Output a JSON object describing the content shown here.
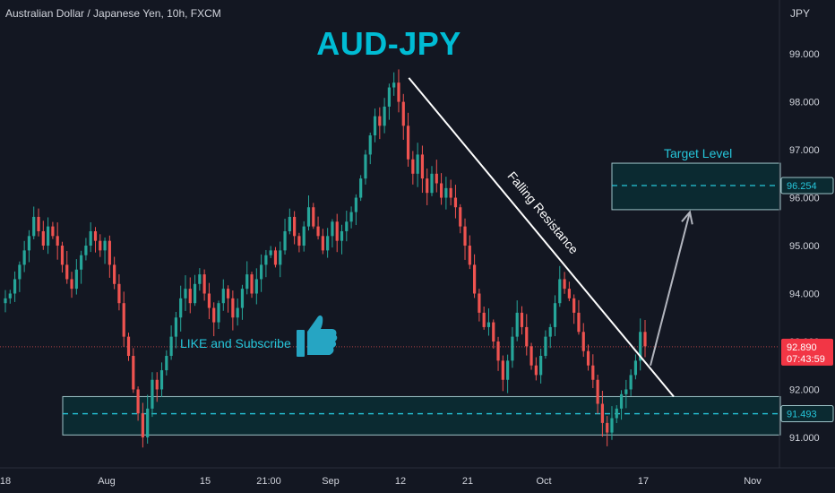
{
  "header": {
    "symbol_text": "Australian Dollar / Japanese Yen, 10h, FXCM",
    "title": "AUD-JPY",
    "currency": "JPY"
  },
  "annotations": {
    "like_text": "LIKE and Subscribe",
    "target_text": "Target Level",
    "trendline_text": "Falling Resistance"
  },
  "colors": {
    "background": "#131722",
    "up": "#26a69a",
    "down": "#ef5350",
    "accent": "#00bcd4",
    "zone_fill": "#0b2a31",
    "zone_stroke": "#9ec3c8"
  },
  "chart_data": {
    "type": "candlestick",
    "ylim": [
      90.4,
      99.9
    ],
    "x_range": [
      0,
      860
    ],
    "y_ticks": [
      "99.000",
      "98.000",
      "97.000",
      "96.000",
      "95.000",
      "94.000",
      "93.000",
      "92.000",
      "91.000"
    ],
    "x_ticks": [
      "18",
      "Aug",
      "15",
      "21:00",
      "Sep",
      "12",
      "21",
      "Oct",
      "17",
      "Nov"
    ],
    "last_price": "92.890",
    "countdown": "07:43:59",
    "support_zone": {
      "low": 91.05,
      "high": 91.85,
      "level": "91.493"
    },
    "target_zone": {
      "low": 95.75,
      "high": 96.72,
      "level": "96.254"
    },
    "falling_resistance": {
      "from": [
        0.49,
        98.5
      ],
      "to": [
        0.8,
        91.85
      ]
    },
    "projection": {
      "from": [
        0.78,
        92.5
      ],
      "to": [
        0.83,
        95.7
      ]
    },
    "path": [
      93.9,
      94.0,
      94.3,
      94.6,
      94.9,
      95.2,
      95.6,
      95.3,
      95.0,
      95.4,
      95.2,
      95.0,
      94.6,
      94.3,
      94.1,
      94.5,
      94.8,
      95.0,
      95.3,
      95.1,
      94.9,
      95.1,
      94.6,
      94.2,
      93.8,
      93.1,
      92.7,
      92.0,
      91.5,
      91.0,
      91.6,
      92.2,
      92.0,
      92.4,
      92.7,
      93.1,
      93.5,
      93.9,
      94.1,
      93.8,
      94.2,
      94.4,
      94.0,
      93.7,
      93.4,
      93.8,
      94.1,
      93.9,
      93.5,
      93.7,
      94.1,
      94.4,
      94.0,
      94.3,
      94.6,
      94.8,
      94.9,
      94.6,
      94.9,
      95.3,
      95.6,
      95.2,
      95.0,
      95.4,
      95.8,
      95.4,
      95.2,
      94.9,
      95.2,
      95.5,
      95.1,
      95.3,
      95.5,
      95.7,
      96.0,
      96.4,
      96.9,
      97.3,
      97.7,
      97.5,
      97.9,
      98.3,
      98.4,
      98.0,
      97.5,
      96.8,
      96.5,
      96.9,
      96.4,
      96.1,
      96.5,
      96.3,
      96.0,
      96.2,
      96.0,
      95.8,
      95.4,
      95.0,
      94.6,
      94.0,
      93.6,
      93.3,
      93.4,
      93.0,
      92.6,
      92.2,
      92.6,
      93.1,
      93.6,
      93.3,
      92.9,
      92.5,
      92.3,
      92.7,
      93.1,
      93.3,
      93.8,
      94.3,
      94.1,
      93.9,
      93.6,
      93.2,
      92.8,
      92.5,
      92.2,
      91.7,
      91.3,
      91.1,
      91.4,
      91.6,
      91.9,
      92.0,
      92.3,
      92.6,
      93.2,
      92.9
    ]
  }
}
